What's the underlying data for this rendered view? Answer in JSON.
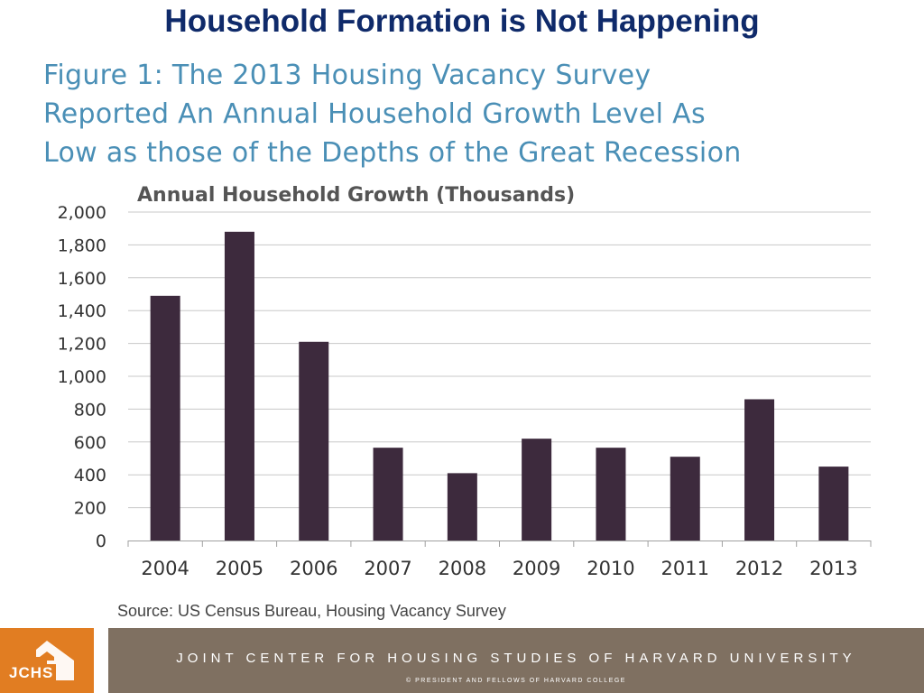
{
  "slide": {
    "title": "Household Formation is Not Happening",
    "figure_caption": [
      "Figure 1: The 2013 Housing Vacancy Survey",
      "Reported An Annual Household Growth Level As",
      "Low as those of the Depths of the Great Recession"
    ],
    "source": "Source: US Census Bureau, Housing Vacancy Survey"
  },
  "footer": {
    "logo_text": "JCHS",
    "organization": "JOINT CENTER FOR HOUSING STUDIES OF HARVARD UNIVERSITY",
    "copyright": "© PRESIDENT AND FELLOWS OF HARVARD COLLEGE"
  },
  "colors": {
    "bar": "#3d2a3d",
    "title": "#0f2a6a",
    "caption": "#4a8fb6",
    "footer_band": "#7f7061",
    "logo": "#e17d22"
  },
  "chart_data": {
    "type": "bar",
    "title": "Annual Household Growth (Thousands)",
    "xlabel": "",
    "ylabel": "",
    "categories": [
      "2004",
      "2005",
      "2006",
      "2007",
      "2008",
      "2009",
      "2010",
      "2011",
      "2012",
      "2013"
    ],
    "values": [
      1490,
      1880,
      1210,
      565,
      410,
      620,
      565,
      510,
      860,
      450
    ],
    "ylim": [
      0,
      2000
    ],
    "yticks": [
      0,
      200,
      400,
      600,
      800,
      1000,
      1200,
      1400,
      1600,
      1800,
      2000
    ],
    "ytick_labels": [
      "0",
      "200",
      "400",
      "600",
      "800",
      "1,000",
      "1,200",
      "1,400",
      "1,600",
      "1,800",
      "2,000"
    ],
    "grid": true,
    "legend": "none"
  }
}
